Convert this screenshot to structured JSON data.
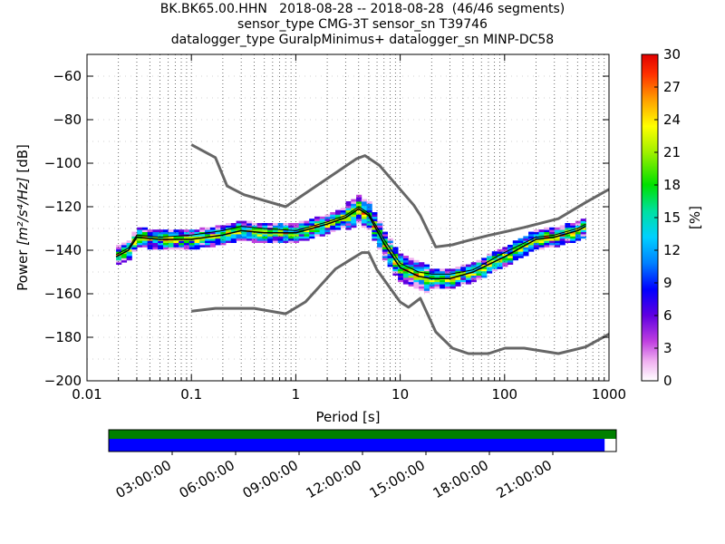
{
  "title": {
    "line1": "BK.BK65.00.HHN   2018-08-28 -- 2018-08-28  (46/46 segments)",
    "line2": "sensor_type CMG-3T sensor_sn T39746",
    "line3": "datalogger_type GuralpMinimus+ datalogger_sn MINP-DC58"
  },
  "chart_data": {
    "type": "heatmap",
    "xlabel": "Period [s]",
    "ylabel_prefix": "Power ",
    "ylabel_units": "[m²/s⁴/Hz]",
    "ylabel_suffix": " [dB]",
    "xscale": "log",
    "xlim": [
      0.01,
      1000
    ],
    "ylim": [
      -200,
      -50
    ],
    "x_ticks": [
      {
        "value": 0.01,
        "label": "0.01"
      },
      {
        "value": 0.1,
        "label": "0.1"
      },
      {
        "value": 1,
        "label": "1"
      },
      {
        "value": 10,
        "label": "10"
      },
      {
        "value": 100,
        "label": "100"
      },
      {
        "value": 1000,
        "label": "1000"
      }
    ],
    "y_ticks": [
      {
        "value": -60,
        "label": "−60"
      },
      {
        "value": -80,
        "label": "−80"
      },
      {
        "value": -100,
        "label": "−100"
      },
      {
        "value": -120,
        "label": "−120"
      },
      {
        "value": -140,
        "label": "−140"
      },
      {
        "value": -160,
        "label": "−160"
      },
      {
        "value": -180,
        "label": "−180"
      },
      {
        "value": -200,
        "label": "−200"
      }
    ],
    "grid": true,
    "colorbar": {
      "label": "[%]",
      "min": 0,
      "max": 30,
      "ticks": [
        {
          "value": 0,
          "label": "0"
        },
        {
          "value": 3,
          "label": "3"
        },
        {
          "value": 6,
          "label": "6"
        },
        {
          "value": 9,
          "label": "9"
        },
        {
          "value": 12,
          "label": "12"
        },
        {
          "value": 15,
          "label": "15"
        },
        {
          "value": 18,
          "label": "18"
        },
        {
          "value": 21,
          "label": "21"
        },
        {
          "value": 24,
          "label": "24"
        },
        {
          "value": 27,
          "label": "27"
        },
        {
          "value": 30,
          "label": "30"
        }
      ]
    },
    "nhnm": {
      "x": [
        0.1,
        0.17,
        0.22,
        0.32,
        0.8,
        3.8,
        4.6,
        6.3,
        13.5,
        15.6,
        21.9,
        31.6,
        45,
        70,
        101,
        154,
        328,
        600,
        1000
      ],
      "y": [
        -91.5,
        -97.4,
        -110.5,
        -114.5,
        -120,
        -98,
        -96.5,
        -100.9,
        -119.3,
        -123.9,
        -138.5,
        -137.5,
        -135.5,
        -133.2,
        -131.5,
        -129.5,
        -125.5,
        -118,
        -112
      ]
    },
    "nlnm": {
      "x": [
        0.1,
        0.17,
        0.4,
        0.8,
        1.24,
        2.4,
        4.3,
        5,
        6,
        10,
        12,
        15.6,
        21.9,
        31.6,
        45,
        70,
        101,
        154,
        328,
        600,
        1000
      ],
      "y": [
        -168,
        -166.7,
        -166.7,
        -169.2,
        -163.7,
        -148.6,
        -141.1,
        -141.1,
        -149,
        -163.8,
        -166.2,
        -162.1,
        -177.5,
        -185,
        -187.5,
        -187.5,
        -185,
        -185,
        -187.5,
        -184.4,
        -178.5
      ]
    },
    "mode_curve": {
      "x": [
        0.019,
        0.025,
        0.03,
        0.05,
        0.1,
        0.2,
        0.3,
        0.5,
        1,
        2,
        3,
        4,
        5,
        7,
        10,
        15,
        20,
        30,
        50,
        100,
        200,
        300,
        500,
        600
      ],
      "y": [
        -143,
        -140,
        -134,
        -135,
        -135,
        -133,
        -131,
        -132,
        -132,
        -128,
        -125,
        -121,
        -124,
        -137,
        -148,
        -152,
        -153,
        -153,
        -150,
        -143,
        -135,
        -134,
        -131,
        -129
      ]
    },
    "mean_curve": {
      "x": [
        0.019,
        0.025,
        0.03,
        0.05,
        0.1,
        0.2,
        0.3,
        0.5,
        1,
        2,
        3,
        4,
        5,
        7,
        10,
        15,
        20,
        30,
        50,
        100,
        200,
        300,
        500,
        600
      ],
      "y": [
        -142,
        -139,
        -133,
        -134,
        -133,
        -131,
        -129,
        -130,
        -131,
        -127,
        -124,
        -120,
        -123,
        -135,
        -146,
        -150,
        -151,
        -151,
        -149,
        -141,
        -134,
        -133,
        -130,
        -128
      ]
    },
    "timeline": {
      "labels": [
        "03:00:00",
        "06:00:00",
        "09:00:00",
        "12:00:00",
        "15:00:00",
        "18:00:00",
        "21:00:00"
      ],
      "start_hour": 0,
      "end_hour": 24,
      "data_coverage_end_hour": 23.45,
      "coverage_color": "#008000",
      "data_color": "#0000ff"
    },
    "colors": {
      "noise_model": "#666666",
      "mode": "#000000",
      "mean": "#000000"
    }
  }
}
